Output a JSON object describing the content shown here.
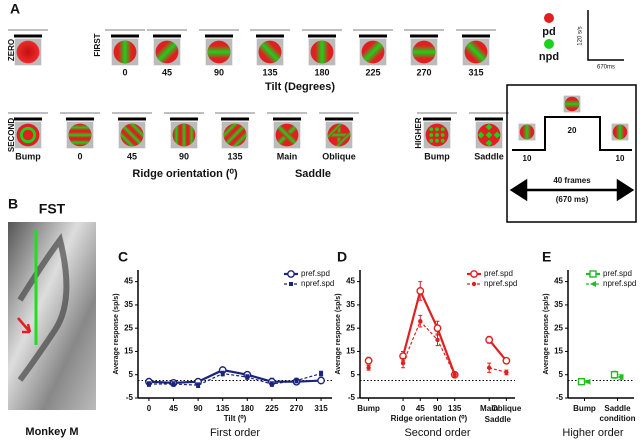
{
  "figure": {
    "A": {
      "letter": "A",
      "zero": "ZERO",
      "first": "FIRST",
      "second": "SECOND",
      "higher": "HIGHER",
      "tilts": [
        0,
        45,
        90,
        135,
        180,
        225,
        270,
        315
      ],
      "tilt_label": "Tilt (Degrees)",
      "second_labels": [
        "Bump",
        "0",
        "45",
        "90",
        "135",
        "Main",
        "Oblique"
      ],
      "ridge_label": "Ridge orientation (⁰)",
      "saddle_label": "Saddle",
      "higher_labels": [
        "Bump",
        "Saddle"
      ],
      "legend": [
        "pd",
        "npd"
      ],
      "scale_y": "120 s/s",
      "scale_x": "670ms",
      "timeline": {
        "middle": "20",
        "left": "10",
        "right": "10",
        "frames": "40 frames",
        "duration": "(670 ms)"
      }
    },
    "B": {
      "letter": "B",
      "area": "FST",
      "subject": "Monkey M"
    }
  },
  "chart_data": [
    {
      "type": "line",
      "panel": "C",
      "title": "First order",
      "xlabel": "Tilt (⁰)",
      "ylabel": "Average response (sp/s)",
      "x": [
        0,
        45,
        90,
        135,
        180,
        225,
        270,
        315
      ],
      "xlim": [
        -20,
        335
      ],
      "xticks": [
        0,
        45,
        90,
        135,
        180,
        225,
        270,
        315
      ],
      "ylim": [
        -5,
        50
      ],
      "yticks": [
        -5,
        5,
        15,
        25,
        35,
        45
      ],
      "baseline": 2.5,
      "legend": "top-right",
      "series": [
        {
          "name": "pref.spd",
          "color": "#1a237e",
          "style": "solid",
          "marker": "open-circle",
          "values": [
            2,
            1.5,
            2,
            7,
            5,
            2,
            2,
            2.5
          ],
          "errors": [
            1,
            1,
            1,
            1,
            1,
            1.5,
            1,
            1
          ]
        },
        {
          "name": "npref.spd",
          "color": "#1a237e",
          "style": "dashed",
          "marker": "square",
          "values": [
            1,
            1,
            0.5,
            5.5,
            4,
            1,
            2.5,
            5.5
          ],
          "errors": [
            1,
            1,
            1,
            1,
            1,
            1,
            1,
            1
          ]
        }
      ]
    },
    {
      "type": "line",
      "panel": "D",
      "title": "Second order",
      "xlabel": "Ridge orientation (⁰)",
      "group_label": "Saddle",
      "ylabel": "Average response (sp/s)",
      "categories": [
        "Bump",
        null,
        "0",
        "45",
        "90",
        "135",
        null,
        "Main",
        "Oblique"
      ],
      "ylim": [
        -5,
        50
      ],
      "yticks": [
        -5,
        5,
        15,
        25,
        35,
        45
      ],
      "baseline": 2.5,
      "legend": "top-right",
      "series": [
        {
          "name": "pref.spd",
          "color": "#e02020",
          "style": "solid",
          "marker": "open-circle",
          "values": [
            11,
            null,
            13,
            41,
            25,
            5,
            null,
            20,
            11
          ],
          "errors": [
            1.5,
            null,
            2,
            4,
            3,
            1,
            null,
            1.5,
            1
          ]
        },
        {
          "name": "npref.spd",
          "color": "#e02020",
          "style": "dashed",
          "marker": "dot",
          "values": [
            8,
            null,
            10,
            28,
            20,
            5,
            null,
            8,
            6
          ],
          "errors": [
            1,
            null,
            2,
            2.5,
            2.5,
            1,
            null,
            2,
            1
          ]
        }
      ]
    },
    {
      "type": "dot",
      "panel": "E",
      "title": "Higher order",
      "xlabel": "condition",
      "ylabel": "Average response (sp/s)",
      "categories": [
        "Bump",
        "Saddle"
      ],
      "ylim": [
        -5,
        50
      ],
      "yticks": [
        -5,
        5,
        15,
        25,
        35,
        45
      ],
      "baseline": 2.5,
      "legend": "top-right",
      "series": [
        {
          "name": "pref.spd",
          "color": "#22bb22",
          "style": "solid",
          "marker": "open-square",
          "values": [
            2,
            5
          ],
          "errors": [
            1,
            1.5
          ]
        },
        {
          "name": "npref.spd",
          "color": "#22bb22",
          "style": "dashed",
          "marker": "triangle",
          "values": [
            2,
            4
          ],
          "errors": [
            0.5,
            1
          ]
        }
      ]
    }
  ]
}
